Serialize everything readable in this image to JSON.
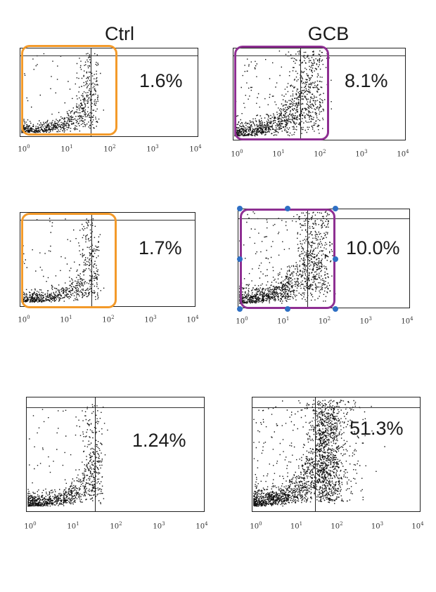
{
  "columns": {
    "ctrl": "Ctrl",
    "gcb": "GCB"
  },
  "tick_exponents": [
    "0",
    "1",
    "2",
    "3",
    "4"
  ],
  "tick_base": "10",
  "colors": {
    "ctrl_gate": "#f39a2a",
    "gcb_gate": "#8e2f92",
    "handle": "#2e6fc4",
    "dots": "#111111"
  },
  "panels": [
    {
      "id": "r1-ctrl",
      "percent": "1.6%",
      "gate": "ctrl",
      "selected": false
    },
    {
      "id": "r1-gcb",
      "percent": "8.1%",
      "gate": "gcb",
      "selected": false
    },
    {
      "id": "r2-ctrl",
      "percent": "1.7%",
      "gate": "ctrl",
      "selected": false
    },
    {
      "id": "r2-gcb",
      "percent": "10.0%",
      "gate": "gcb",
      "selected": true
    },
    {
      "id": "r3-ctrl",
      "percent": "1.24%",
      "gate": "none",
      "selected": false
    },
    {
      "id": "r3-gcb",
      "percent": "51.3%",
      "gate": "none",
      "selected": false
    }
  ]
}
